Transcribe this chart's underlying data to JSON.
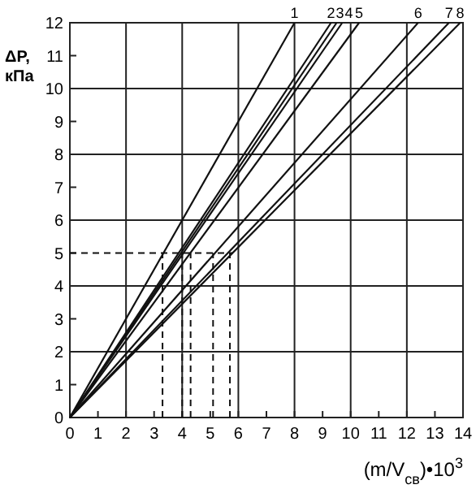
{
  "chart_data": {
    "type": "line",
    "xlabel": "(m/V$_{св}$)•10$^{3}$",
    "ylabel": "ΔP, кПа",
    "xlim": [
      0,
      14
    ],
    "ylim": [
      0,
      12
    ],
    "xticks": [
      0,
      1,
      2,
      3,
      4,
      5,
      6,
      7,
      8,
      9,
      10,
      11,
      12,
      13,
      14
    ],
    "yticks": [
      0,
      1,
      2,
      3,
      4,
      5,
      6,
      7,
      8,
      9,
      10,
      11,
      12
    ],
    "grid": true,
    "marker": "none",
    "series": [
      {
        "name": "1",
        "color": "#111111",
        "x": [
          0,
          8
        ],
        "values": [
          0,
          12
        ]
      },
      {
        "name": "2",
        "color": "#111111",
        "x": [
          0,
          9.3
        ],
        "values": [
          0,
          12
        ]
      },
      {
        "name": "3",
        "color": "#111111",
        "x": [
          0,
          9.5
        ],
        "values": [
          0,
          12
        ]
      },
      {
        "name": "4",
        "color": "#111111",
        "x": [
          0,
          9.7
        ],
        "values": [
          0,
          12
        ]
      },
      {
        "name": "5",
        "color": "#111111",
        "x": [
          0,
          10.3
        ],
        "values": [
          0,
          12
        ]
      },
      {
        "name": "6",
        "color": "#111111",
        "x": [
          0,
          12.4
        ],
        "values": [
          0,
          12
        ]
      },
      {
        "name": "7",
        "color": "#111111",
        "x": [
          0,
          13.5
        ],
        "values": [
          0,
          12
        ]
      },
      {
        "name": "8",
        "color": "#111111",
        "x": [
          0,
          13.9
        ],
        "values": [
          0,
          12
        ]
      },
      {
        "color": "#111111",
        "line_style": "dashed",
        "x": [
          0,
          5.8
        ],
        "values": [
          5,
          5
        ]
      },
      {
        "color": "#111111",
        "line_style": "dashed",
        "x": [
          3.3,
          3.3
        ],
        "values": [
          0,
          5
        ]
      },
      {
        "color": "#111111",
        "line_style": "dashed",
        "x": [
          4,
          4
        ],
        "values": [
          0,
          5
        ]
      },
      {
        "color": "#111111",
        "line_style": "dashed",
        "x": [
          4.3,
          4.3
        ],
        "values": [
          0,
          5
        ]
      },
      {
        "color": "#111111",
        "line_style": "dashed",
        "x": [
          5.1,
          5.1
        ],
        "values": [
          0,
          5
        ]
      },
      {
        "color": "#111111",
        "line_style": "dashed",
        "x": [
          5.7,
          5.7
        ],
        "values": [
          0,
          5
        ]
      }
    ]
  }
}
